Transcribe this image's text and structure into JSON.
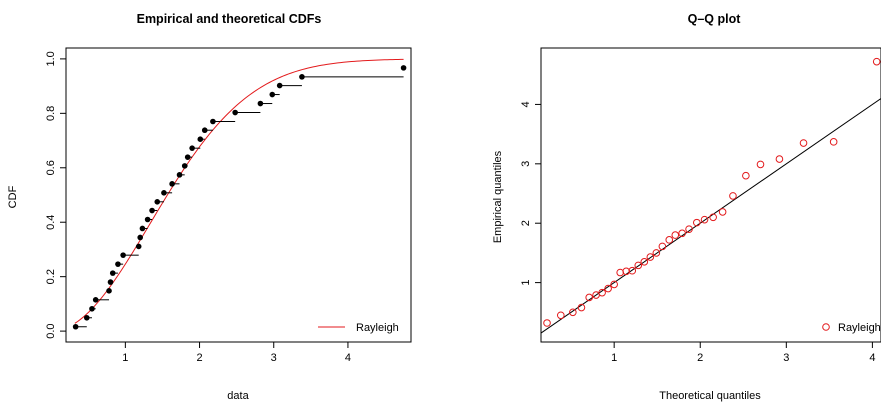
{
  "chart_data": [
    {
      "type": "line",
      "title": "Empirical and theoretical CDFs",
      "xlabel": "data",
      "ylabel": "CDF",
      "xlim": [
        0.2,
        4.85
      ],
      "ylim": [
        -0.04,
        1.04
      ],
      "xticks": [
        1,
        2,
        3,
        4
      ],
      "yticks": [
        0.0,
        0.2,
        0.4,
        0.6,
        0.8,
        1.0
      ],
      "ytick_labels": [
        "0.0",
        "0.2",
        "0.4",
        "0.6",
        "0.8",
        "1.0"
      ],
      "legend": {
        "position": "bottom-right",
        "entries": [
          "Rayleigh"
        ]
      },
      "grid": false,
      "empirical_x": [
        0.33,
        0.48,
        0.55,
        0.6,
        0.78,
        0.8,
        0.83,
        0.9,
        0.97,
        1.18,
        1.2,
        1.23,
        1.3,
        1.36,
        1.43,
        1.52,
        1.63,
        1.73,
        1.8,
        1.84,
        1.9,
        2.01,
        2.07,
        2.18,
        2.48,
        2.82,
        2.98,
        3.08,
        3.38,
        4.75
      ],
      "empirical_y": [
        0.016,
        0.049,
        0.082,
        0.115,
        0.148,
        0.18,
        0.213,
        0.246,
        0.279,
        0.311,
        0.344,
        0.377,
        0.41,
        0.443,
        0.475,
        0.508,
        0.541,
        0.574,
        0.607,
        0.639,
        0.672,
        0.705,
        0.738,
        0.77,
        0.803,
        0.836,
        0.869,
        0.902,
        0.934,
        0.967
      ],
      "series": [
        {
          "name": "Rayleigh",
          "color": "#e31a1c",
          "type": "line",
          "sigma": 1.33
        }
      ],
      "empirical_color": "#000000"
    },
    {
      "type": "scatter",
      "title": "Q–Q plot",
      "xlabel": "Theoretical quantiles",
      "ylabel": "Empirical quantiles",
      "xlim": [
        0.15,
        4.1
      ],
      "ylim": [
        0.0,
        4.95
      ],
      "xticks": [
        1,
        2,
        3,
        4
      ],
      "yticks": [
        1,
        2,
        3,
        4
      ],
      "legend": {
        "position": "bottom-right",
        "entries": [
          "Rayleigh"
        ]
      },
      "grid": false,
      "x": [
        0.22,
        0.38,
        0.52,
        0.62,
        0.71,
        0.79,
        0.86,
        0.93,
        1.0,
        1.07,
        1.14,
        1.21,
        1.28,
        1.35,
        1.42,
        1.49,
        1.56,
        1.64,
        1.71,
        1.79,
        1.87,
        1.96,
        2.05,
        2.15,
        2.26,
        2.38,
        2.53,
        2.7,
        2.92,
        3.2,
        3.55,
        4.05
      ],
      "y": [
        0.32,
        0.45,
        0.5,
        0.58,
        0.75,
        0.79,
        0.83,
        0.9,
        0.97,
        1.17,
        1.19,
        1.2,
        1.29,
        1.35,
        1.43,
        1.5,
        1.61,
        1.72,
        1.8,
        1.83,
        1.9,
        2.01,
        2.06,
        2.1,
        2.19,
        2.46,
        2.8,
        2.99,
        3.08,
        3.35,
        3.37,
        4.72
      ],
      "series": [
        {
          "name": "Rayleigh",
          "color": "#e31a1c",
          "marker": "open-circle"
        }
      ],
      "reference_line": {
        "slope": 1,
        "intercept": 0,
        "color": "#000000"
      }
    }
  ]
}
